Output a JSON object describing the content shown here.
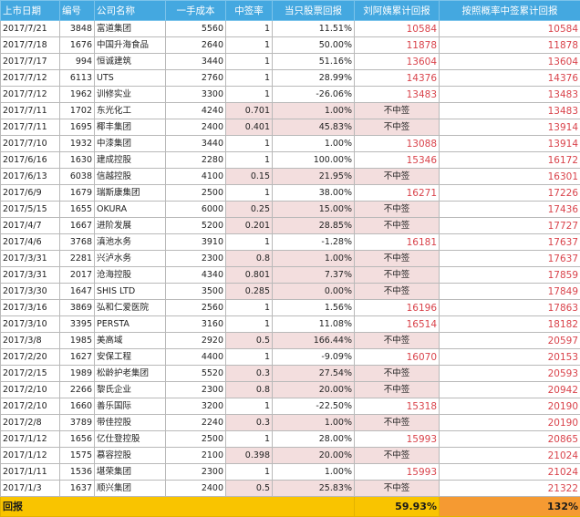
{
  "headers": [
    "上市日期",
    "编号",
    "公司名称",
    "一手成本",
    "中签率",
    "当只股票回报",
    "刘阿姨累计回报",
    "按照概率中签累计回报"
  ],
  "rows": [
    {
      "date": "2017/7/21",
      "code": "3848",
      "name": "富道集团",
      "cost": "5560",
      "rate": "1",
      "ret": "11.51%",
      "liu": "10584",
      "prob": "10584"
    },
    {
      "date": "2017/7/18",
      "code": "1676",
      "name": "中国升海食品",
      "cost": "2640",
      "rate": "1",
      "ret": "50.00%",
      "liu": "11878",
      "prob": "11878"
    },
    {
      "date": "2017/7/17",
      "code": "994",
      "name": "恒诚建筑",
      "cost": "3440",
      "rate": "1",
      "ret": "51.16%",
      "liu": "13604",
      "prob": "13604"
    },
    {
      "date": "2017/7/12",
      "code": "6113",
      "name": "UTS",
      "cost": "2760",
      "rate": "1",
      "ret": "28.99%",
      "liu": "14376",
      "prob": "14376"
    },
    {
      "date": "2017/7/12",
      "code": "1962",
      "name": "训修实业",
      "cost": "3300",
      "rate": "1",
      "ret": "-26.06%",
      "liu": "13483",
      "prob": "13483"
    },
    {
      "date": "2017/7/11",
      "code": "1702",
      "name": "东光化工",
      "cost": "4240",
      "rate": "0.701",
      "ret": "1.00%",
      "liu": "不中签",
      "prob": "13483"
    },
    {
      "date": "2017/7/11",
      "code": "1695",
      "name": "椰丰集团",
      "cost": "2400",
      "rate": "0.401",
      "ret": "45.83%",
      "liu": "不中签",
      "prob": "13914"
    },
    {
      "date": "2017/7/10",
      "code": "1932",
      "name": "中漆集团",
      "cost": "3440",
      "rate": "1",
      "ret": "1.00%",
      "liu": "13088",
      "prob": "13914"
    },
    {
      "date": "2017/6/16",
      "code": "1630",
      "name": "建成控股",
      "cost": "2280",
      "rate": "1",
      "ret": "100.00%",
      "liu": "15346",
      "prob": "16172"
    },
    {
      "date": "2017/6/13",
      "code": "6038",
      "name": "信越控股",
      "cost": "4100",
      "rate": "0.15",
      "ret": "21.95%",
      "liu": "不中签",
      "prob": "16301"
    },
    {
      "date": "2017/6/9",
      "code": "1679",
      "name": "瑞斯康集团",
      "cost": "2500",
      "rate": "1",
      "ret": "38.00%",
      "liu": "16271",
      "prob": "17226"
    },
    {
      "date": "2017/5/15",
      "code": "1655",
      "name": "OKURA",
      "cost": "6000",
      "rate": "0.25",
      "ret": "15.00%",
      "liu": "不中签",
      "prob": "17436"
    },
    {
      "date": "2017/4/7",
      "code": "1667",
      "name": "进阶发展",
      "cost": "5200",
      "rate": "0.201",
      "ret": "28.85%",
      "liu": "不中签",
      "prob": "17727"
    },
    {
      "date": "2017/4/6",
      "code": "3768",
      "name": "滇池水务",
      "cost": "3910",
      "rate": "1",
      "ret": "-1.28%",
      "liu": "16181",
      "prob": "17637"
    },
    {
      "date": "2017/3/31",
      "code": "2281",
      "name": "兴泸水务",
      "cost": "2300",
      "rate": "0.8",
      "ret": "1.00%",
      "liu": "不中签",
      "prob": "17637"
    },
    {
      "date": "2017/3/31",
      "code": "2017",
      "name": "沧海控股",
      "cost": "4340",
      "rate": "0.801",
      "ret": "7.37%",
      "liu": "不中签",
      "prob": "17859"
    },
    {
      "date": "2017/3/30",
      "code": "1647",
      "name": "SHIS LTD",
      "cost": "3500",
      "rate": "0.285",
      "ret": "0.00%",
      "liu": "不中签",
      "prob": "17849"
    },
    {
      "date": "2017/3/16",
      "code": "3869",
      "name": "弘和仁爱医院",
      "cost": "2560",
      "rate": "1",
      "ret": "1.56%",
      "liu": "16196",
      "prob": "17863"
    },
    {
      "date": "2017/3/10",
      "code": "3395",
      "name": "PERSTA",
      "cost": "3160",
      "rate": "1",
      "ret": "11.08%",
      "liu": "16514",
      "prob": "18182"
    },
    {
      "date": "2017/3/8",
      "code": "1985",
      "name": "美高域",
      "cost": "2920",
      "rate": "0.5",
      "ret": "166.44%",
      "liu": "不中签",
      "prob": "20597"
    },
    {
      "date": "2017/2/20",
      "code": "1627",
      "name": "安保工程",
      "cost": "4400",
      "rate": "1",
      "ret": "-9.09%",
      "liu": "16070",
      "prob": "20153"
    },
    {
      "date": "2017/2/15",
      "code": "1989",
      "name": "松龄护老集团",
      "cost": "5520",
      "rate": "0.3",
      "ret": "27.54%",
      "liu": "不中签",
      "prob": "20593"
    },
    {
      "date": "2017/2/10",
      "code": "2266",
      "name": "黎氏企业",
      "cost": "2300",
      "rate": "0.8",
      "ret": "20.00%",
      "liu": "不中签",
      "prob": "20942"
    },
    {
      "date": "2017/2/10",
      "code": "1660",
      "name": "善乐国际",
      "cost": "3200",
      "rate": "1",
      "ret": "-22.50%",
      "liu": "15318",
      "prob": "20190"
    },
    {
      "date": "2017/2/8",
      "code": "3789",
      "name": "带佳控股",
      "cost": "2240",
      "rate": "0.3",
      "ret": "1.00%",
      "liu": "不中签",
      "prob": "20190"
    },
    {
      "date": "2017/1/12",
      "code": "1656",
      "name": "亿仕登控股",
      "cost": "2500",
      "rate": "1",
      "ret": "28.00%",
      "liu": "15993",
      "prob": "20865"
    },
    {
      "date": "2017/1/12",
      "code": "1575",
      "name": "慕容控股",
      "cost": "2100",
      "rate": "0.398",
      "ret": "20.00%",
      "liu": "不中签",
      "prob": "21024"
    },
    {
      "date": "2017/1/11",
      "code": "1536",
      "name": "堪荣集团",
      "cost": "2300",
      "rate": "1",
      "ret": "1.00%",
      "liu": "15993",
      "prob": "21024"
    },
    {
      "date": "2017/1/3",
      "code": "1637",
      "name": "顺兴集团",
      "cost": "2400",
      "rate": "0.5",
      "ret": "25.83%",
      "liu": "不中签",
      "prob": "21322"
    }
  ],
  "footer": {
    "label": "回报",
    "liu": "59.93%",
    "prob": "132%"
  },
  "colors": {
    "header_bg": "#44a8e0",
    "highlight_bg": "#f3dede",
    "red_text": "#d9434b",
    "footer_bg": "#f9c400",
    "footer_accent": "#f59a32"
  }
}
